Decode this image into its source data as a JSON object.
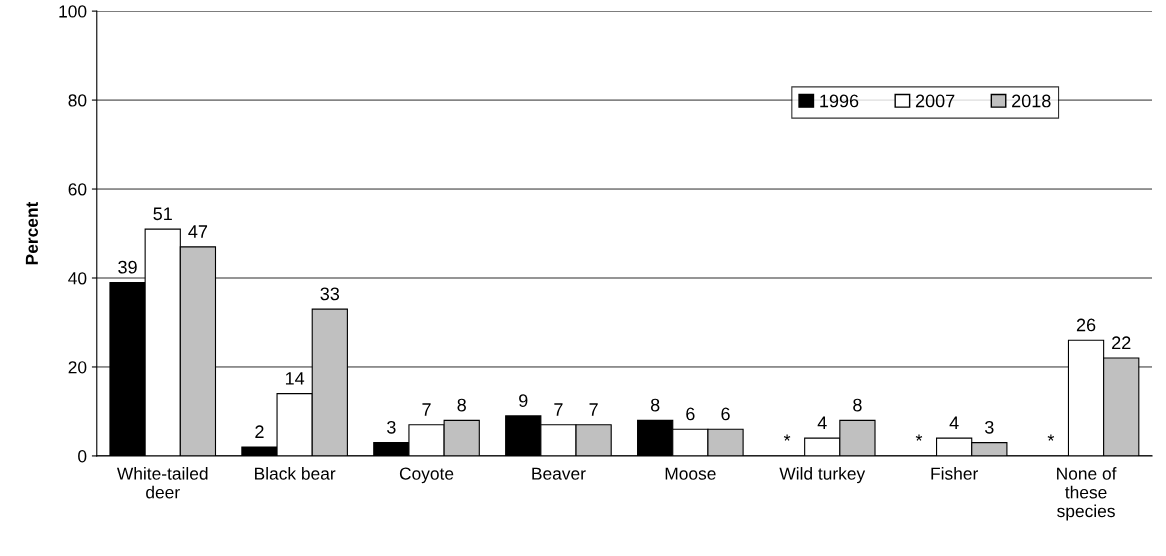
{
  "chart_data": {
    "type": "bar",
    "ylabel": "Percent",
    "categories": [
      "White-tailed\ndeer",
      "Black bear",
      "Coyote",
      "Beaver",
      "Moose",
      "Wild turkey",
      "Fisher",
      "None of\nthese\nspecies"
    ],
    "series": [
      {
        "name": "1996",
        "color": "#000000",
        "values": [
          39,
          2,
          3,
          9,
          8,
          null,
          null,
          null
        ],
        "value_labels": [
          "39",
          "2",
          "3",
          "9",
          "8",
          "*",
          "*",
          "*"
        ]
      },
      {
        "name": "2007",
        "color": "#ffffff",
        "values": [
          51,
          14,
          7,
          7,
          6,
          4,
          4,
          26
        ],
        "value_labels": [
          "51",
          "14",
          "7",
          "7",
          "6",
          "4",
          "4",
          "26"
        ]
      },
      {
        "name": "2018",
        "color": "#c0c0c0",
        "values": [
          47,
          33,
          8,
          7,
          6,
          8,
          3,
          22
        ],
        "value_labels": [
          "47",
          "33",
          "8",
          "7",
          "6",
          "8",
          "3",
          "22"
        ]
      }
    ],
    "ylim": [
      0,
      100
    ],
    "yticks": [
      0,
      20,
      40,
      60,
      80,
      100
    ],
    "grid": "y",
    "legend": "top right"
  }
}
